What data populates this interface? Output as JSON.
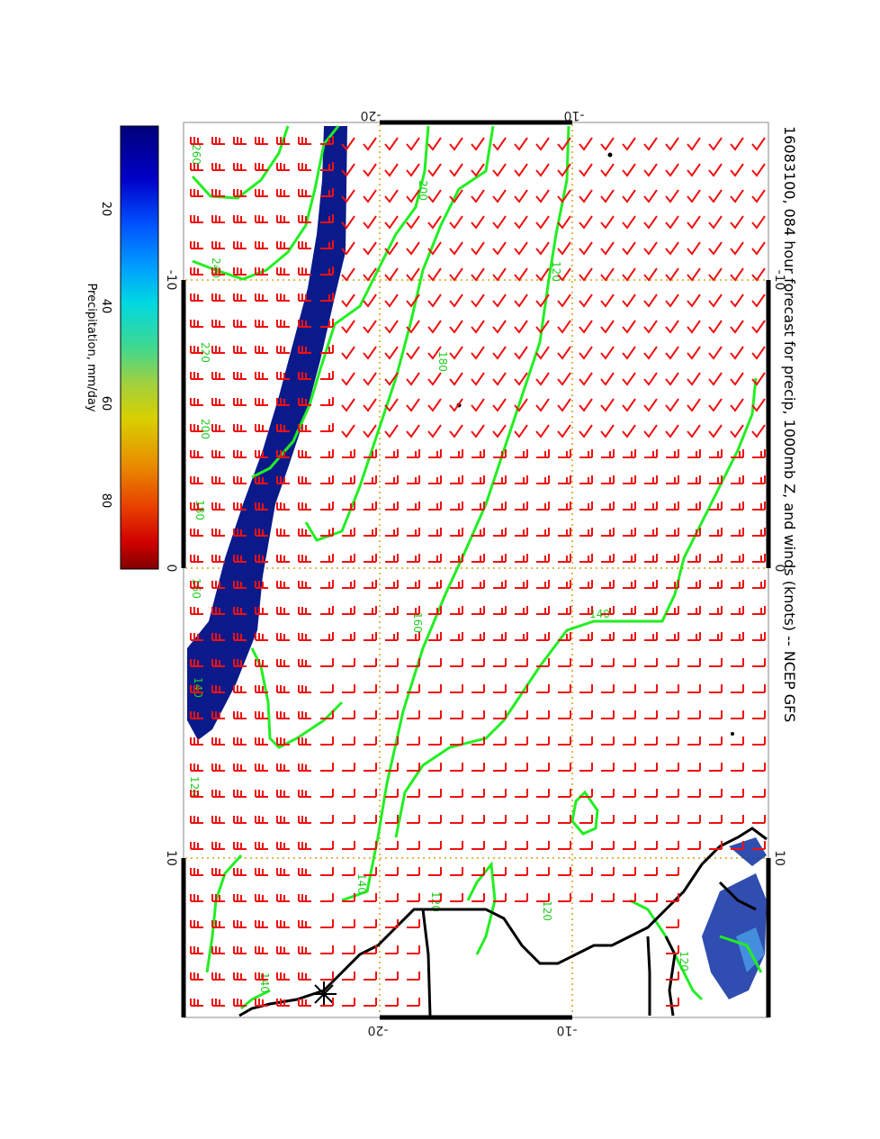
{
  "title": "16083100, 084 hour forecast for precip, 1000mb Z, and winds (knots) -- NCEP GFS",
  "colorbar": {
    "label": "Precipitation, mm/day",
    "ticks": [
      "20",
      "40",
      "60",
      "80"
    ],
    "colors": [
      "#00007a",
      "#0000c8",
      "#0050ff",
      "#00a0ff",
      "#00d8e0",
      "#40d890",
      "#a0d040",
      "#d8d000",
      "#e89000",
      "#e84000",
      "#d00000",
      "#800000"
    ]
  },
  "axes": {
    "top_labels": [
      "-20",
      "-10"
    ],
    "bottom_labels": [
      "-20",
      "-10"
    ],
    "left_labels": [
      "-10",
      "0",
      "10"
    ],
    "right_labels": [
      "-10",
      "0",
      "10"
    ]
  },
  "contour_labels": [
    "260",
    "240",
    "220",
    "200",
    "180",
    "160",
    "140",
    "120",
    "200",
    "180",
    "160",
    "140",
    "120",
    "140",
    "120",
    "120",
    "140",
    "120"
  ],
  "colors": {
    "contour": "#22ee22",
    "barb": "#ee1111",
    "precip": "#0a1a8a",
    "gridline": "#d4a017",
    "coast": "#000000"
  }
}
